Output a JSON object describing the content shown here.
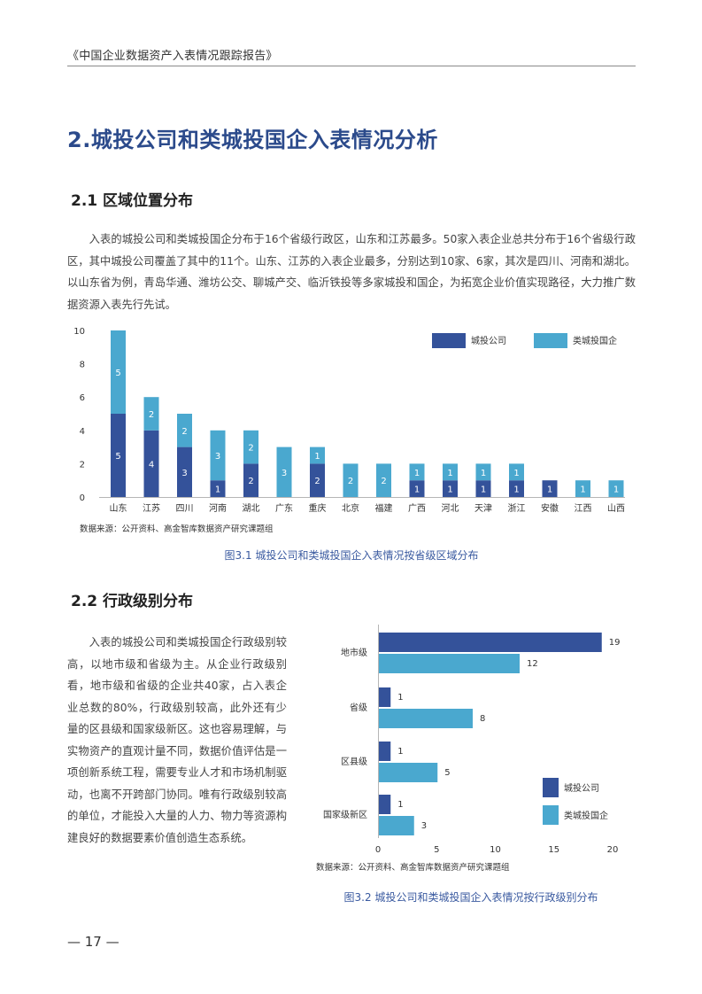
{
  "header": {
    "title": "《中国企业数据资产入表情况跟踪报告》"
  },
  "section": {
    "title": "2.城投公司和类城投国企入表情况分析"
  },
  "sub1": {
    "title": "2.1 区域位置分布",
    "paragraph": "入表的城投公司和类城投国企分布于16个省级行政区，山东和江苏最多。50家入表企业总共分布于16个省级行政区，其中城投公司覆盖了其中的11个。山东、江苏的入表企业最多，分别达到10家、6家，其次是四川、河南和湖北。以山东省为例，青岛华通、潍坊公交、聊城产交、临沂铁投等多家城投和国企，为拓宽企业价值实现路径，大力推广数据资源入表先行先试。",
    "source": "数据来源：公开资料、高金智库数据资产研究课题组",
    "caption": "图3.1 城投公司和类城投国企入表情况按省级区域分布"
  },
  "sub2": {
    "title": "2.2 行政级别分布",
    "paragraph": "入表的城投公司和类城投国企行政级别较高，以地市级和省级为主。从企业行政级别看，地市级和省级的企业共40家，占入表企业总数的80%，行政级别较高，此外还有少量的区县级和国家级新区。这也容易理解，与实物资产的直观计量不同，数据价值评估是一项创新系统工程，需要专业人才和市场机制驱动，也离不开跨部门协同。唯有行政级别较高的单位，才能投入大量的人力、物力等资源构建良好的数据要素价值创造生态系统。",
    "source": "数据来源：公开资料、高金智库数据资产研究课题组",
    "caption": "图3.2 城投公司和类城投国企入表情况按行政级别分布"
  },
  "page_number": "— 17 —",
  "colors": {
    "series1": "#34529a",
    "series2": "#4aa8cf",
    "title": "#2b4a8b",
    "caption": "#3a5aa0"
  },
  "chart_data": [
    {
      "type": "bar",
      "stacked": true,
      "categories": [
        "山东",
        "江苏",
        "四川",
        "河南",
        "湖北",
        "广东",
        "重庆",
        "北京",
        "福建",
        "广西",
        "河北",
        "天津",
        "浙江",
        "安徽",
        "江西",
        "山西"
      ],
      "series": [
        {
          "name": "城投公司",
          "values": [
            5,
            4,
            3,
            1,
            2,
            0,
            2,
            0,
            0,
            1,
            1,
            1,
            1,
            1,
            0,
            0
          ]
        },
        {
          "name": "类城投国企",
          "values": [
            5,
            2,
            2,
            3,
            2,
            3,
            1,
            2,
            2,
            1,
            1,
            1,
            1,
            0,
            1,
            1
          ]
        }
      ],
      "yticks": [
        "0",
        "2",
        "4",
        "6",
        "8",
        "10"
      ],
      "ylim": [
        0,
        10
      ],
      "legend": "top-right",
      "grid": false
    },
    {
      "type": "bar",
      "orientation": "horizontal",
      "categories": [
        "地市级",
        "省级",
        "区县级",
        "国家级新区"
      ],
      "series": [
        {
          "name": "城投公司",
          "values": [
            19,
            1,
            1,
            1
          ]
        },
        {
          "name": "类城投国企",
          "values": [
            12,
            8,
            5,
            3
          ]
        }
      ],
      "xticks": [
        "0",
        "5",
        "10",
        "15",
        "20"
      ],
      "xlim": [
        0,
        20
      ],
      "legend": "right",
      "grid": false
    }
  ]
}
